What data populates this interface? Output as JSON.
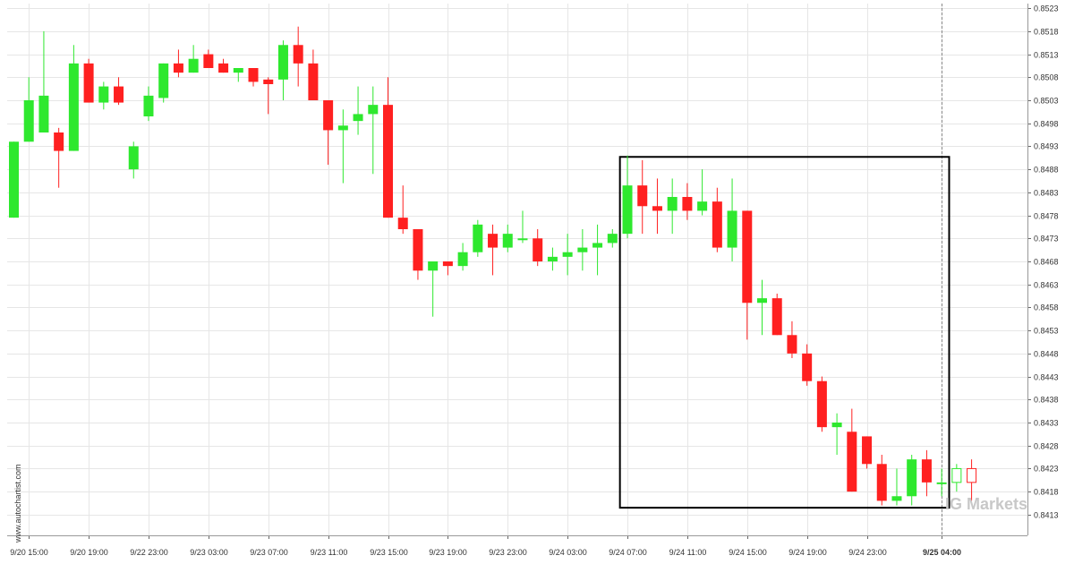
{
  "watermarks": {
    "side": "www.autochartist.com",
    "logo": "IG Markets"
  },
  "colors": {
    "bull": "#2ee82e",
    "bear": "#ff2020",
    "grid": "#e6e6e6",
    "pattern_box": "#000000",
    "current_time_line": "#888888",
    "projection": "#ff2020"
  },
  "chart_data": {
    "type": "candlestick",
    "title": "",
    "xlabel": "",
    "ylabel": "",
    "ylim": [
      0.84085,
      0.8524
    ],
    "y_ticks": [
      "0.8413",
      "0.8418",
      "0.8423",
      "0.8428",
      "0.8433",
      "0.8438",
      "0.8443",
      "0.8448",
      "0.8453",
      "0.8458",
      "0.8463",
      "0.8468",
      "0.8473",
      "0.8478",
      "0.8483",
      "0.8488",
      "0.8493",
      "0.8498",
      "0.8503",
      "0.8508",
      "0.8513",
      "0.8518",
      "0.8523"
    ],
    "x_ticks": [
      {
        "label": "9/20 15:00",
        "index": 1
      },
      {
        "label": "9/20 19:00",
        "index": 5
      },
      {
        "label": "9/22 23:00",
        "index": 9
      },
      {
        "label": "9/23 03:00",
        "index": 13
      },
      {
        "label": "9/23 07:00",
        "index": 17
      },
      {
        "label": "9/23 11:00",
        "index": 21
      },
      {
        "label": "9/23 15:00",
        "index": 25
      },
      {
        "label": "9/23 19:00",
        "index": 29
      },
      {
        "label": "9/23 23:00",
        "index": 33
      },
      {
        "label": "9/24 03:00",
        "index": 37
      },
      {
        "label": "9/24 07:00",
        "index": 41
      },
      {
        "label": "9/24 11:00",
        "index": 45
      },
      {
        "label": "9/24 15:00",
        "index": 49
      },
      {
        "label": "9/24 19:00",
        "index": 53
      },
      {
        "label": "9/24 23:00",
        "index": 57
      },
      {
        "label": "9/25 04:00",
        "index": 62
      }
    ],
    "current_time_index": 62,
    "pattern_box": {
      "start_index": 40.5,
      "end_index": 62.5,
      "high": 0.84907,
      "low": 0.84145
    },
    "candles": [
      {
        "o": 0.84775,
        "h": 0.8494,
        "l": 0.84775,
        "c": 0.8494
      },
      {
        "o": 0.8494,
        "h": 0.8508,
        "l": 0.8494,
        "c": 0.8503
      },
      {
        "o": 0.8496,
        "h": 0.8518,
        "l": 0.8496,
        "c": 0.8504
      },
      {
        "o": 0.8496,
        "h": 0.8497,
        "l": 0.8484,
        "c": 0.8492
      },
      {
        "o": 0.8492,
        "h": 0.8515,
        "l": 0.8492,
        "c": 0.8511
      },
      {
        "o": 0.8511,
        "h": 0.8512,
        "l": 0.85025,
        "c": 0.85025
      },
      {
        "o": 0.85025,
        "h": 0.8507,
        "l": 0.8501,
        "c": 0.8506
      },
      {
        "o": 0.8506,
        "h": 0.8508,
        "l": 0.8502,
        "c": 0.85025
      },
      {
        "o": 0.8488,
        "h": 0.8494,
        "l": 0.8486,
        "c": 0.8493
      },
      {
        "o": 0.84995,
        "h": 0.8506,
        "l": 0.84985,
        "c": 0.8504
      },
      {
        "o": 0.85035,
        "h": 0.8511,
        "l": 0.85025,
        "c": 0.8511
      },
      {
        "o": 0.8511,
        "h": 0.8514,
        "l": 0.8508,
        "c": 0.8509
      },
      {
        "o": 0.8509,
        "h": 0.8515,
        "l": 0.8509,
        "c": 0.8512
      },
      {
        "o": 0.8513,
        "h": 0.8514,
        "l": 0.851,
        "c": 0.851
      },
      {
        "o": 0.8511,
        "h": 0.8512,
        "l": 0.8509,
        "c": 0.8509
      },
      {
        "o": 0.8509,
        "h": 0.851,
        "l": 0.8507,
        "c": 0.851
      },
      {
        "o": 0.851,
        "h": 0.851,
        "l": 0.8506,
        "c": 0.8507
      },
      {
        "o": 0.85075,
        "h": 0.8508,
        "l": 0.85,
        "c": 0.85065
      },
      {
        "o": 0.85075,
        "h": 0.8516,
        "l": 0.8503,
        "c": 0.8515
      },
      {
        "o": 0.8515,
        "h": 0.8519,
        "l": 0.8506,
        "c": 0.8511
      },
      {
        "o": 0.8511,
        "h": 0.8514,
        "l": 0.8503,
        "c": 0.8503
      },
      {
        "o": 0.8503,
        "h": 0.8503,
        "l": 0.8489,
        "c": 0.84965
      },
      {
        "o": 0.84965,
        "h": 0.8501,
        "l": 0.8485,
        "c": 0.84975
      },
      {
        "o": 0.84985,
        "h": 0.8506,
        "l": 0.84955,
        "c": 0.85
      },
      {
        "o": 0.85,
        "h": 0.8506,
        "l": 0.8487,
        "c": 0.8502
      },
      {
        "o": 0.8502,
        "h": 0.8508,
        "l": 0.84775,
        "c": 0.84775
      },
      {
        "o": 0.84775,
        "h": 0.84845,
        "l": 0.8474,
        "c": 0.8475
      },
      {
        "o": 0.8475,
        "h": 0.8475,
        "l": 0.8464,
        "c": 0.8466
      },
      {
        "o": 0.8466,
        "h": 0.8468,
        "l": 0.8456,
        "c": 0.8468
      },
      {
        "o": 0.8468,
        "h": 0.8468,
        "l": 0.8465,
        "c": 0.8467
      },
      {
        "o": 0.8467,
        "h": 0.8472,
        "l": 0.8466,
        "c": 0.847
      },
      {
        "o": 0.847,
        "h": 0.8477,
        "l": 0.8469,
        "c": 0.8476
      },
      {
        "o": 0.8474,
        "h": 0.8476,
        "l": 0.8465,
        "c": 0.8471
      },
      {
        "o": 0.8471,
        "h": 0.8476,
        "l": 0.847,
        "c": 0.8474
      },
      {
        "o": 0.8473,
        "h": 0.8479,
        "l": 0.8472,
        "c": 0.8473
      },
      {
        "o": 0.8473,
        "h": 0.8475,
        "l": 0.8467,
        "c": 0.8468
      },
      {
        "o": 0.8468,
        "h": 0.8471,
        "l": 0.8466,
        "c": 0.8469
      },
      {
        "o": 0.8469,
        "h": 0.8474,
        "l": 0.8465,
        "c": 0.847
      },
      {
        "o": 0.847,
        "h": 0.8475,
        "l": 0.8466,
        "c": 0.8471
      },
      {
        "o": 0.8471,
        "h": 0.8476,
        "l": 0.8465,
        "c": 0.8472
      },
      {
        "o": 0.8472,
        "h": 0.8475,
        "l": 0.8471,
        "c": 0.8474
      },
      {
        "o": 0.8474,
        "h": 0.8491,
        "l": 0.8473,
        "c": 0.84845
      },
      {
        "o": 0.84845,
        "h": 0.849,
        "l": 0.8474,
        "c": 0.848
      },
      {
        "o": 0.848,
        "h": 0.8486,
        "l": 0.8474,
        "c": 0.8479
      },
      {
        "o": 0.8479,
        "h": 0.8486,
        "l": 0.8474,
        "c": 0.8482
      },
      {
        "o": 0.8482,
        "h": 0.8485,
        "l": 0.8477,
        "c": 0.8479
      },
      {
        "o": 0.8479,
        "h": 0.8488,
        "l": 0.8478,
        "c": 0.8481
      },
      {
        "o": 0.8481,
        "h": 0.8484,
        "l": 0.847,
        "c": 0.8471
      },
      {
        "o": 0.8471,
        "h": 0.8486,
        "l": 0.8468,
        "c": 0.8479
      },
      {
        "o": 0.8479,
        "h": 0.8479,
        "l": 0.8451,
        "c": 0.8459
      },
      {
        "o": 0.8459,
        "h": 0.8464,
        "l": 0.8452,
        "c": 0.846
      },
      {
        "o": 0.846,
        "h": 0.8461,
        "l": 0.8452,
        "c": 0.8452
      },
      {
        "o": 0.8452,
        "h": 0.8455,
        "l": 0.8447,
        "c": 0.8448
      },
      {
        "o": 0.8448,
        "h": 0.845,
        "l": 0.8441,
        "c": 0.8442
      },
      {
        "o": 0.8442,
        "h": 0.8443,
        "l": 0.8431,
        "c": 0.8432
      },
      {
        "o": 0.8432,
        "h": 0.8435,
        "l": 0.8426,
        "c": 0.8433
      },
      {
        "o": 0.8431,
        "h": 0.8436,
        "l": 0.8418,
        "c": 0.8418
      },
      {
        "o": 0.843,
        "h": 0.843,
        "l": 0.8423,
        "c": 0.8424
      },
      {
        "o": 0.8424,
        "h": 0.8426,
        "l": 0.8415,
        "c": 0.8416
      },
      {
        "o": 0.8416,
        "h": 0.8423,
        "l": 0.8415,
        "c": 0.8417
      },
      {
        "o": 0.8417,
        "h": 0.8426,
        "l": 0.8415,
        "c": 0.8425
      },
      {
        "o": 0.8425,
        "h": 0.8427,
        "l": 0.8417,
        "c": 0.842
      },
      {
        "o": 0.842,
        "h": 0.8423,
        "l": 0.8417,
        "c": 0.842
      },
      {
        "o": 0.842,
        "h": 0.8424,
        "l": 0.8418,
        "c": 0.8423
      },
      {
        "o": 0.8423,
        "h": 0.8425,
        "l": 0.8416,
        "c": 0.842
      }
    ],
    "projection_indices": [
      63,
      64
    ]
  }
}
